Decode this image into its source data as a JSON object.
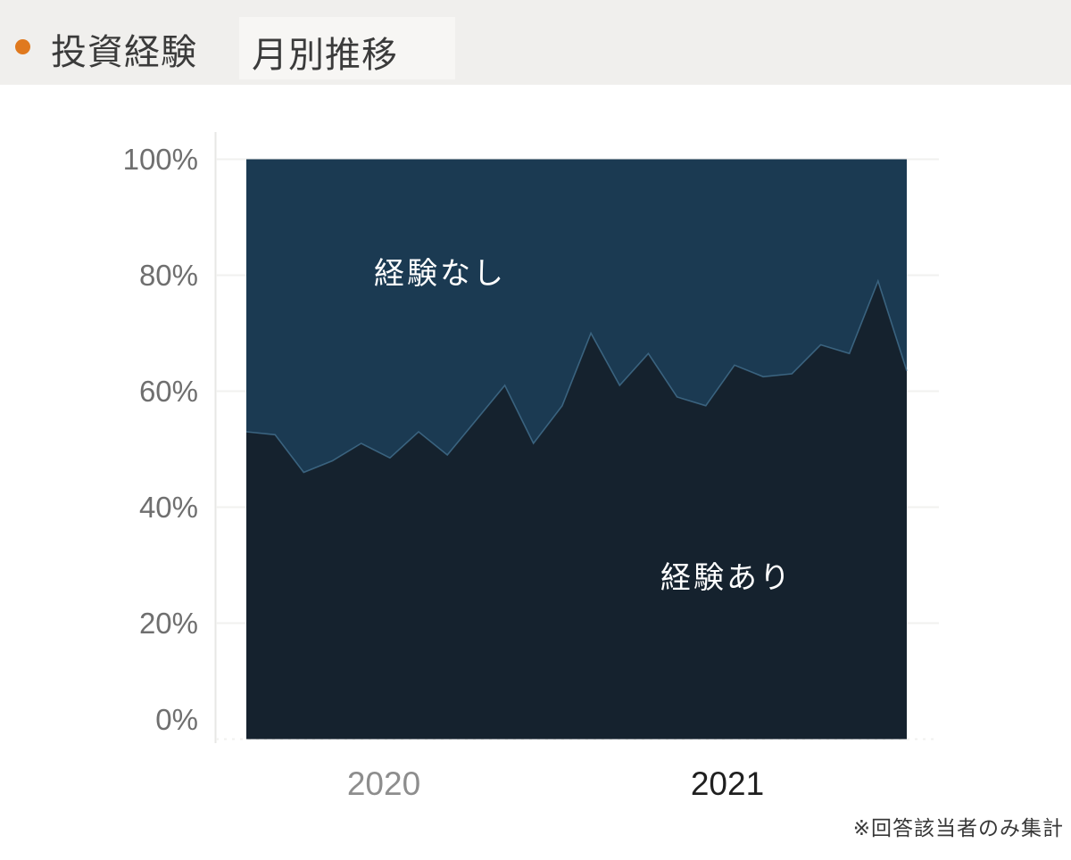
{
  "header": {
    "bullet_color": "#e0791e",
    "title": "投資経験",
    "subtitle": "月別推移"
  },
  "chart_data": {
    "type": "area",
    "stacked": true,
    "stack_total": 100,
    "unit": "%",
    "title": "投資経験 月別推移",
    "x": [
      "2020-01",
      "2020-02",
      "2020-03",
      "2020-04",
      "2020-05",
      "2020-06",
      "2020-07",
      "2020-08",
      "2020-09",
      "2020-10",
      "2020-11",
      "2020-12",
      "2021-01",
      "2021-02",
      "2021-03",
      "2021-04",
      "2021-05",
      "2021-06",
      "2021-07",
      "2021-08",
      "2021-09",
      "2021-10",
      "2021-11",
      "2021-12"
    ],
    "series": [
      {
        "name": "経験あり",
        "color": "#15222e",
        "values": [
          53,
          52.5,
          46,
          48,
          51,
          48.5,
          53,
          49,
          55,
          61,
          51,
          57.5,
          70,
          61,
          66.5,
          59,
          57.5,
          64.5,
          62.5,
          63,
          68,
          66.5,
          79,
          63.5
        ]
      },
      {
        "name": "経験なし",
        "color": "#1b3a52",
        "values": [
          47,
          47.5,
          54,
          52,
          49,
          51.5,
          47,
          51,
          45,
          39,
          49,
          42.5,
          30,
          39,
          33.5,
          41,
          42.5,
          35.5,
          37.5,
          37,
          32,
          33.5,
          21,
          36.5
        ]
      }
    ],
    "boundary_stroke": "#44708e",
    "ylim": [
      0,
      100
    ],
    "yticks": [
      0,
      20,
      40,
      60,
      80,
      100
    ],
    "ytick_labels": [
      "0%",
      "20%",
      "40%",
      "60%",
      "80%",
      "100%"
    ],
    "grid": true,
    "grid_color": "#f1f1ef",
    "axis_color": "#e7e7e5",
    "x_axis_labels": [
      {
        "label": "2020",
        "emphasis": false
      },
      {
        "label": "2021",
        "emphasis": true
      }
    ],
    "area_labels": [
      {
        "text": "経験なし"
      },
      {
        "text": "経験あり"
      }
    ],
    "legend": "in-plot labels"
  },
  "footnote": "※回答該当者のみ集計"
}
